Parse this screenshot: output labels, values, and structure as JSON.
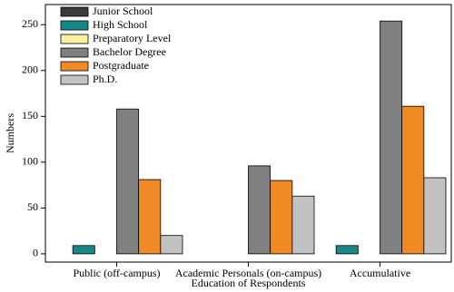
{
  "chart_data": {
    "type": "bar",
    "x_label": "Education of Respondents",
    "y_label": "Numbers",
    "categories": [
      "Public (off-campus)",
      "Academic Personals (on-campus)",
      "Accumulative"
    ],
    "series": [
      {
        "name": "Junior School",
        "color": "#3a3a3a",
        "values": [
          0,
          0,
          0
        ]
      },
      {
        "name": "High School",
        "color": "#17888a",
        "values": [
          9,
          0,
          9
        ]
      },
      {
        "name": "Preparatory Level",
        "color": "#fbf1a0",
        "values": [
          0,
          0,
          0
        ]
      },
      {
        "name": "Bachelor Degree",
        "color": "#808080",
        "values": [
          158,
          96,
          254
        ]
      },
      {
        "name": "Postgraduate",
        "color": "#f08a24",
        "values": [
          81,
          80,
          161
        ]
      },
      {
        "name": "Ph.D.",
        "color": "#c2c2c2",
        "values": [
          20,
          63,
          83
        ]
      }
    ],
    "ylim": [
      -9,
      272
    ],
    "yticks": [
      0,
      50,
      100,
      150,
      200,
      250
    ],
    "legend": "upper left"
  }
}
